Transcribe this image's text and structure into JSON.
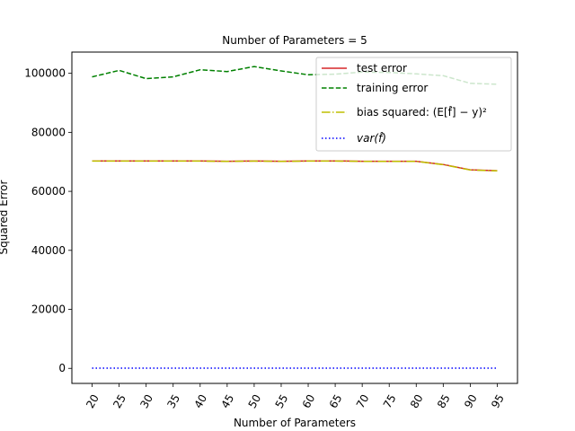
{
  "chart_data": {
    "type": "line",
    "title": "Number of Parameters = 5",
    "xlabel": "Number of Parameters",
    "ylabel": "Squared Error",
    "x": [
      20,
      25,
      30,
      35,
      40,
      45,
      50,
      55,
      60,
      65,
      70,
      75,
      80,
      85,
      90,
      95
    ],
    "x_tick_labels": [
      "20",
      "25",
      "30",
      "35",
      "40",
      "45",
      "50",
      "55",
      "60",
      "65",
      "70",
      "75",
      "80",
      "85",
      "90",
      "95"
    ],
    "y_ticks": [
      0,
      20000,
      40000,
      60000,
      80000,
      100000
    ],
    "y_tick_labels": [
      "0",
      "20000",
      "40000",
      "60000",
      "80000",
      "100000"
    ],
    "xlim": [
      16.25,
      98.75
    ],
    "ylim": [
      -5100,
      107200
    ],
    "grid": false,
    "legend_position": "top-right",
    "series": [
      {
        "name": "test error",
        "color": "#d62728",
        "style": "solid",
        "values": [
          70300,
          70300,
          70300,
          70300,
          70300,
          70200,
          70300,
          70200,
          70300,
          70300,
          70200,
          70200,
          70200,
          69100,
          67300,
          67000
        ]
      },
      {
        "name": "training error",
        "color": "#008000",
        "style": "dashed",
        "values": [
          98800,
          101000,
          98200,
          98800,
          101200,
          100600,
          102300,
          100800,
          99500,
          99700,
          100400,
          100300,
          99800,
          99200,
          96600,
          96300
        ]
      },
      {
        "name": "bias squared: (E[f̂] − y)²",
        "color": "#bfbf00",
        "style": "dashdot",
        "values": [
          70250,
          70250,
          70250,
          70250,
          70250,
          70150,
          70250,
          70150,
          70250,
          70250,
          70150,
          70150,
          70150,
          69050,
          67250,
          66950
        ]
      },
      {
        "name": "var(f̂)",
        "color": "#0000ff",
        "style": "dotted",
        "values": [
          60,
          60,
          60,
          60,
          60,
          60,
          60,
          60,
          60,
          60,
          60,
          60,
          60,
          60,
          60,
          60
        ]
      }
    ]
  }
}
